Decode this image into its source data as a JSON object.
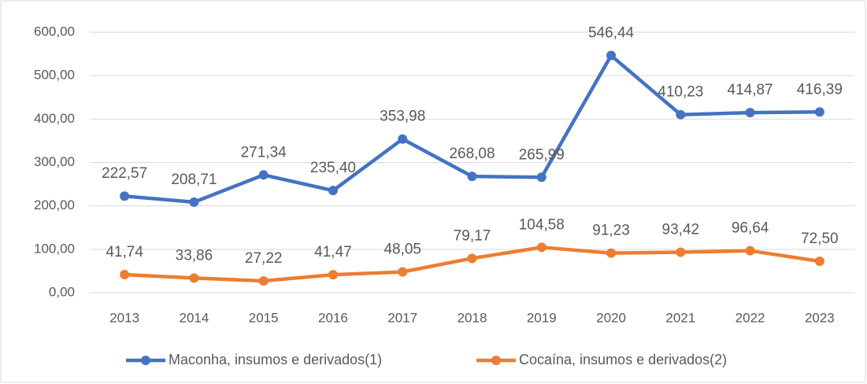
{
  "chart_data": {
    "type": "line",
    "categories": [
      "2013",
      "2014",
      "2015",
      "2016",
      "2017",
      "2018",
      "2019",
      "2020",
      "2021",
      "2022",
      "2023"
    ],
    "series": [
      {
        "name": "Maconha, insumos e derivados(1)",
        "color": "#4472c4",
        "values": [
          222.57,
          208.71,
          271.34,
          235.4,
          353.98,
          268.08,
          265.99,
          546.44,
          410.23,
          414.87,
          416.39
        ],
        "value_labels": [
          "222,57",
          "208,71",
          "271,34",
          "235,40",
          "353,98",
          "268,08",
          "265,99",
          "546,44",
          "410,23",
          "414,87",
          "416,39"
        ]
      },
      {
        "name": "Cocaína, insumos e derivados(2)",
        "color": "#ed7d31",
        "values": [
          41.74,
          33.86,
          27.22,
          41.47,
          48.05,
          79.17,
          104.58,
          91.23,
          93.42,
          96.64,
          72.5
        ],
        "value_labels": [
          "41,74",
          "33,86",
          "27,22",
          "41,47",
          "48,05",
          "79,17",
          "104,58",
          "91,23",
          "93,42",
          "96,64",
          "72,50"
        ]
      }
    ],
    "ylim": [
      0,
      600
    ],
    "yticks": [
      {
        "value": 0,
        "label": "0,00"
      },
      {
        "value": 100,
        "label": "100,00"
      },
      {
        "value": 200,
        "label": "200,00"
      },
      {
        "value": 300,
        "label": "300,00"
      },
      {
        "value": 400,
        "label": "400,00"
      },
      {
        "value": 500,
        "label": "500,00"
      },
      {
        "value": 600,
        "label": "600,00"
      }
    ],
    "grid": true,
    "legend": "bottom"
  }
}
